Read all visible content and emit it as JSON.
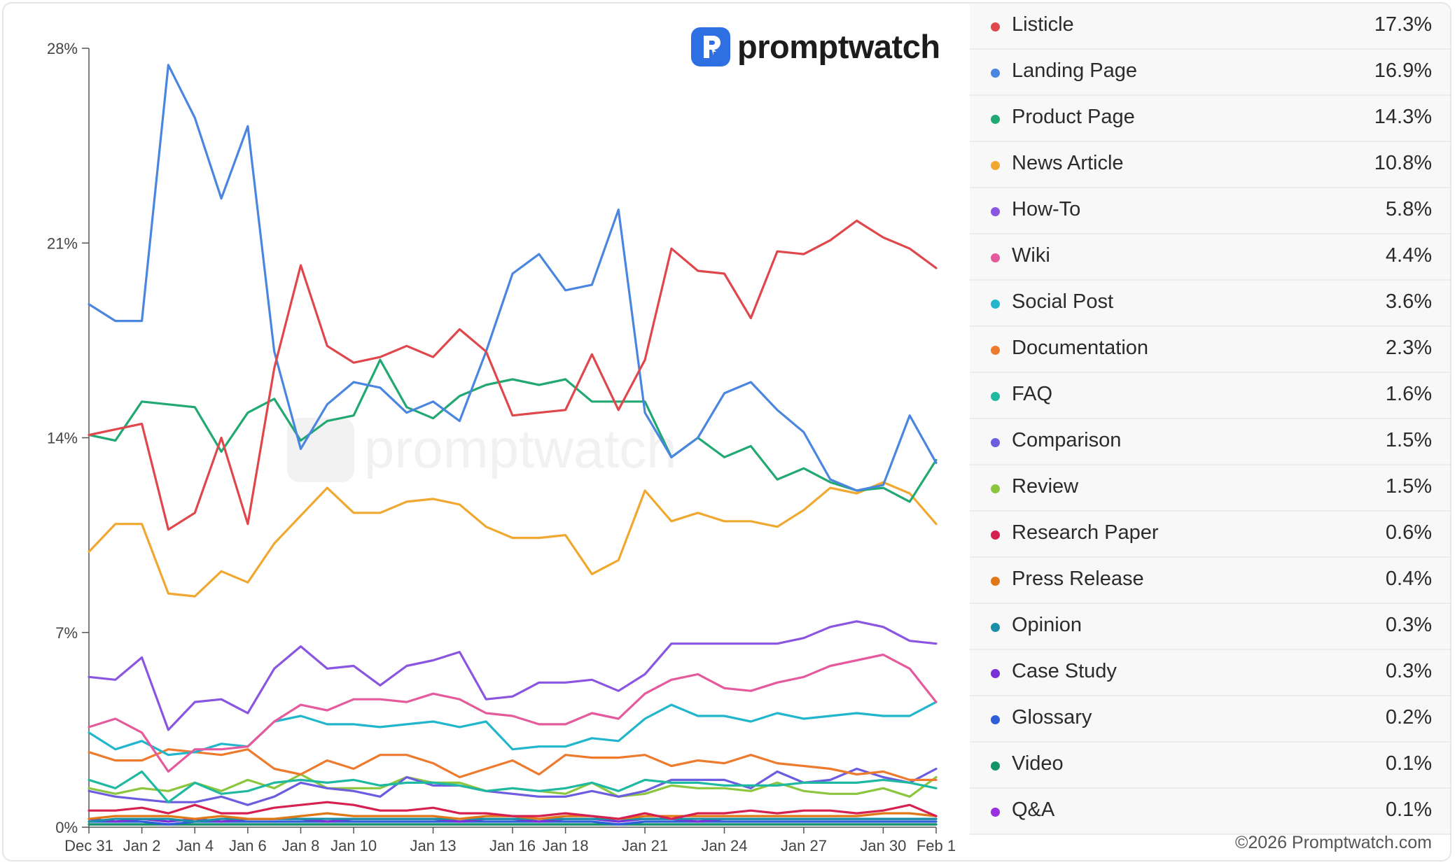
{
  "brand": {
    "name": "promptwatch",
    "copyright": "©2026 Promptwatch.com"
  },
  "chart_data": {
    "type": "line",
    "title": "",
    "xlabel": "",
    "ylabel": "",
    "ylim": [
      0,
      28
    ],
    "yticks": [
      "0%",
      "7%",
      "14%",
      "21%",
      "28%"
    ],
    "ytick_values": [
      0,
      7,
      14,
      21,
      28
    ],
    "x_tick_labels": [
      {
        "label": "Dec 31",
        "index": 0
      },
      {
        "label": "Jan 2",
        "index": 2
      },
      {
        "label": "Jan 4",
        "index": 4
      },
      {
        "label": "Jan 6",
        "index": 6
      },
      {
        "label": "Jan 8",
        "index": 8
      },
      {
        "label": "Jan 10",
        "index": 10
      },
      {
        "label": "Jan 13",
        "index": 13
      },
      {
        "label": "Jan 16",
        "index": 16
      },
      {
        "label": "Jan 18",
        "index": 18
      },
      {
        "label": "Jan 21",
        "index": 21
      },
      {
        "label": "Jan 24",
        "index": 24
      },
      {
        "label": "Jan 27",
        "index": 27
      },
      {
        "label": "Jan 30",
        "index": 30
      },
      {
        "label": "Feb 1",
        "index": 32
      }
    ],
    "series": [
      {
        "name": "Listicle",
        "share": "17.3%",
        "color": "#e0474c",
        "values": [
          14.1,
          14.3,
          14.5,
          10.7,
          11.3,
          14.0,
          10.9,
          16.5,
          20.2,
          17.3,
          16.7,
          16.9,
          17.3,
          16.9,
          17.9,
          17.1,
          14.8,
          14.9,
          15.0,
          17.0,
          15.0,
          16.8,
          20.8,
          20.0,
          19.9,
          18.3,
          20.7,
          20.6,
          21.1,
          21.8,
          21.2,
          20.8,
          20.1
        ]
      },
      {
        "name": "Landing Page",
        "share": "16.9%",
        "color": "#4a86e0",
        "values": [
          18.8,
          18.2,
          18.2,
          27.4,
          25.5,
          22.6,
          25.2,
          17.1,
          13.6,
          15.2,
          16.0,
          15.8,
          14.9,
          15.3,
          14.6,
          17.1,
          19.9,
          20.6,
          19.3,
          19.5,
          22.2,
          14.9,
          13.3,
          14.0,
          15.6,
          16.0,
          15.0,
          14.2,
          12.5,
          12.1,
          12.3,
          14.8,
          13.1
        ]
      },
      {
        "name": "Product Page",
        "share": "14.3%",
        "color": "#22a873",
        "values": [
          14.1,
          13.9,
          15.3,
          15.2,
          15.1,
          13.5,
          14.9,
          15.4,
          13.9,
          14.6,
          14.8,
          16.8,
          15.1,
          14.7,
          15.5,
          15.9,
          16.1,
          15.9,
          16.1,
          15.3,
          15.3,
          15.3,
          13.3,
          14.0,
          13.3,
          13.7,
          12.5,
          12.9,
          12.4,
          12.1,
          12.2,
          11.7,
          13.2
        ]
      },
      {
        "name": "News Article",
        "share": "10.8%",
        "color": "#f0a830",
        "values": [
          9.9,
          10.9,
          10.9,
          8.4,
          8.3,
          9.2,
          8.8,
          10.2,
          11.2,
          12.2,
          11.3,
          11.3,
          11.7,
          11.8,
          11.6,
          10.8,
          10.4,
          10.4,
          10.5,
          9.1,
          9.6,
          12.1,
          11.0,
          11.3,
          11.0,
          11.0,
          10.8,
          11.4,
          12.2,
          12.0,
          12.4,
          12.0,
          10.9
        ]
      },
      {
        "name": "How-To",
        "share": "5.8%",
        "color": "#8a55e0",
        "values": [
          5.4,
          5.3,
          6.1,
          3.5,
          4.5,
          4.6,
          4.1,
          5.7,
          6.5,
          5.7,
          5.8,
          5.1,
          5.8,
          6.0,
          6.3,
          4.6,
          4.7,
          5.2,
          5.2,
          5.3,
          4.9,
          5.5,
          6.6,
          6.6,
          6.6,
          6.6,
          6.6,
          6.8,
          7.2,
          7.4,
          7.2,
          6.7,
          6.6
        ]
      },
      {
        "name": "Wiki",
        "share": "4.4%",
        "color": "#e55a9c",
        "values": [
          3.6,
          3.9,
          3.4,
          2.0,
          2.8,
          2.8,
          2.9,
          3.8,
          4.4,
          4.2,
          4.6,
          4.6,
          4.5,
          4.8,
          4.6,
          4.1,
          4.0,
          3.7,
          3.7,
          4.1,
          3.9,
          4.8,
          5.3,
          5.5,
          5.0,
          4.9,
          5.2,
          5.4,
          5.8,
          6.0,
          6.2,
          5.7,
          4.5
        ]
      },
      {
        "name": "Social Post",
        "share": "3.6%",
        "color": "#22b6cc",
        "values": [
          3.4,
          2.8,
          3.1,
          2.6,
          2.7,
          3.0,
          2.9,
          3.8,
          4.0,
          3.7,
          3.7,
          3.6,
          3.7,
          3.8,
          3.6,
          3.8,
          2.8,
          2.9,
          2.9,
          3.2,
          3.1,
          3.9,
          4.4,
          4.0,
          4.0,
          3.8,
          4.1,
          3.9,
          4.0,
          4.1,
          4.0,
          4.0,
          4.5
        ]
      },
      {
        "name": "Documentation",
        "share": "2.3%",
        "color": "#ee7a2e",
        "values": [
          2.7,
          2.4,
          2.4,
          2.8,
          2.7,
          2.6,
          2.8,
          2.1,
          1.9,
          2.4,
          2.1,
          2.6,
          2.6,
          2.3,
          1.8,
          2.1,
          2.4,
          1.9,
          2.6,
          2.5,
          2.5,
          2.6,
          2.2,
          2.4,
          2.3,
          2.6,
          2.3,
          2.2,
          2.1,
          1.9,
          2.0,
          1.7,
          1.7
        ]
      },
      {
        "name": "FAQ",
        "share": "1.6%",
        "color": "#1fb8a0",
        "values": [
          1.7,
          1.4,
          2.0,
          0.9,
          1.6,
          1.2,
          1.3,
          1.6,
          1.7,
          1.6,
          1.7,
          1.5,
          1.6,
          1.6,
          1.5,
          1.3,
          1.4,
          1.3,
          1.4,
          1.6,
          1.3,
          1.7,
          1.6,
          1.6,
          1.5,
          1.5,
          1.5,
          1.6,
          1.6,
          1.6,
          1.7,
          1.6,
          1.4
        ]
      },
      {
        "name": "Comparison",
        "share": "1.5%",
        "color": "#6c5ce0",
        "values": [
          1.3,
          1.1,
          1.0,
          0.9,
          0.9,
          1.1,
          0.8,
          1.1,
          1.6,
          1.4,
          1.3,
          1.1,
          1.8,
          1.5,
          1.5,
          1.3,
          1.2,
          1.1,
          1.1,
          1.3,
          1.1,
          1.3,
          1.7,
          1.7,
          1.7,
          1.4,
          2.0,
          1.6,
          1.7,
          2.1,
          1.8,
          1.6,
          2.1
        ]
      },
      {
        "name": "Review",
        "share": "1.5%",
        "color": "#8cc63f",
        "values": [
          1.4,
          1.2,
          1.4,
          1.3,
          1.6,
          1.3,
          1.7,
          1.4,
          1.9,
          1.4,
          1.4,
          1.4,
          1.8,
          1.6,
          1.6,
          1.3,
          1.4,
          1.3,
          1.2,
          1.6,
          1.1,
          1.2,
          1.5,
          1.4,
          1.4,
          1.3,
          1.6,
          1.3,
          1.2,
          1.2,
          1.4,
          1.1,
          1.8
        ]
      },
      {
        "name": "Research Paper",
        "share": "0.6%",
        "color": "#d62050",
        "values": [
          0.6,
          0.6,
          0.7,
          0.5,
          0.8,
          0.5,
          0.5,
          0.7,
          0.8,
          0.9,
          0.8,
          0.6,
          0.6,
          0.7,
          0.5,
          0.5,
          0.4,
          0.4,
          0.5,
          0.4,
          0.3,
          0.5,
          0.3,
          0.5,
          0.5,
          0.6,
          0.5,
          0.6,
          0.6,
          0.5,
          0.6,
          0.8,
          0.4
        ]
      },
      {
        "name": "Press Release",
        "share": "0.4%",
        "color": "#e07818",
        "values": [
          0.3,
          0.4,
          0.4,
          0.4,
          0.3,
          0.4,
          0.3,
          0.3,
          0.4,
          0.5,
          0.4,
          0.4,
          0.4,
          0.4,
          0.3,
          0.4,
          0.4,
          0.3,
          0.4,
          0.4,
          0.3,
          0.4,
          0.4,
          0.4,
          0.4,
          0.4,
          0.4,
          0.4,
          0.4,
          0.4,
          0.5,
          0.5,
          0.4
        ]
      },
      {
        "name": "Opinion",
        "share": "0.3%",
        "color": "#1a90a8",
        "values": [
          0.2,
          0.3,
          0.3,
          0.3,
          0.2,
          0.3,
          0.3,
          0.3,
          0.3,
          0.3,
          0.3,
          0.3,
          0.3,
          0.3,
          0.3,
          0.3,
          0.3,
          0.3,
          0.3,
          0.3,
          0.3,
          0.3,
          0.3,
          0.3,
          0.3,
          0.3,
          0.3,
          0.3,
          0.3,
          0.3,
          0.3,
          0.3,
          0.3
        ]
      },
      {
        "name": "Case Study",
        "share": "0.3%",
        "color": "#7a30d8",
        "values": [
          0.3,
          0.2,
          0.3,
          0.2,
          0.3,
          0.2,
          0.3,
          0.3,
          0.3,
          0.2,
          0.3,
          0.3,
          0.3,
          0.3,
          0.2,
          0.3,
          0.3,
          0.2,
          0.3,
          0.3,
          0.2,
          0.3,
          0.3,
          0.2,
          0.3,
          0.3,
          0.3,
          0.3,
          0.3,
          0.3,
          0.3,
          0.3,
          0.3
        ]
      },
      {
        "name": "Glossary",
        "share": "0.2%",
        "color": "#2f5fd8",
        "values": [
          0.2,
          0.2,
          0.2,
          0.1,
          0.2,
          0.2,
          0.2,
          0.2,
          0.2,
          0.2,
          0.2,
          0.2,
          0.2,
          0.2,
          0.2,
          0.2,
          0.2,
          0.2,
          0.2,
          0.2,
          0.1,
          0.2,
          0.2,
          0.2,
          0.2,
          0.2,
          0.2,
          0.2,
          0.2,
          0.2,
          0.2,
          0.2,
          0.2
        ]
      },
      {
        "name": "Video",
        "share": "0.1%",
        "color": "#12946a",
        "values": [
          0.1,
          0.1,
          0.1,
          0.1,
          0.1,
          0.1,
          0.1,
          0.1,
          0.1,
          0.1,
          0.1,
          0.1,
          0.1,
          0.1,
          0.1,
          0.1,
          0.1,
          0.1,
          0.1,
          0.1,
          0.1,
          0.1,
          0.1,
          0.1,
          0.1,
          0.1,
          0.1,
          0.1,
          0.1,
          0.1,
          0.1,
          0.1,
          0.1
        ]
      },
      {
        "name": "Q&A",
        "share": "0.1%",
        "color": "#9b30e0",
        "values": [
          0.1,
          0.1,
          0.1,
          0.1,
          0.1,
          0.1,
          0.1,
          0.1,
          0.1,
          0.1,
          0.1,
          0.1,
          0.1,
          0.1,
          0.1,
          0.1,
          0.1,
          0.1,
          0.1,
          0.1,
          0.1,
          0.1,
          0.1,
          0.1,
          0.1,
          0.1,
          0.1,
          0.1,
          0.1,
          0.1,
          0.1,
          0.1,
          0.1
        ]
      }
    ]
  }
}
